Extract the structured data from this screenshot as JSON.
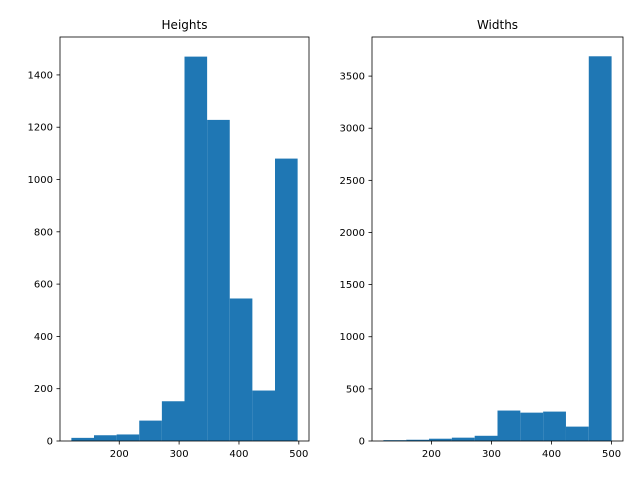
{
  "chart_data": [
    {
      "type": "bar",
      "title": "Heights",
      "xlabel": "",
      "ylabel": "",
      "bins": [
        [
          120,
          157.8
        ],
        [
          157.8,
          195.6
        ],
        [
          195.6,
          233.4
        ],
        [
          233.4,
          271.2
        ],
        [
          271.2,
          309.0
        ],
        [
          309.0,
          346.8
        ],
        [
          346.8,
          384.6
        ],
        [
          384.6,
          422.4
        ],
        [
          422.4,
          460.2
        ],
        [
          460.2,
          498.0
        ]
      ],
      "values": [
        12,
        22,
        25,
        78,
        152,
        1470,
        1228,
        545,
        193,
        1080
      ],
      "xlim": [
        101,
        517
      ],
      "ylim": [
        0,
        1545
      ],
      "xticks": [
        200,
        300,
        400,
        500
      ],
      "yticks": [
        0,
        200,
        400,
        600,
        800,
        1000,
        1200,
        1400
      ],
      "grid": false,
      "color": "#1f77b4"
    },
    {
      "type": "bar",
      "title": "Widths",
      "xlabel": "",
      "ylabel": "",
      "bins": [
        [
          120,
          158.0
        ],
        [
          158.0,
          196.0
        ],
        [
          196.0,
          234.0
        ],
        [
          234.0,
          272.0
        ],
        [
          272.0,
          310.0
        ],
        [
          310.0,
          348.0
        ],
        [
          348.0,
          386.0
        ],
        [
          386.0,
          424.0
        ],
        [
          424.0,
          462.0
        ],
        [
          462.0,
          500.0
        ]
      ],
      "values": [
        8,
        12,
        22,
        32,
        50,
        292,
        272,
        282,
        138,
        3690
      ],
      "xlim": [
        101,
        519
      ],
      "ylim": [
        0,
        3875
      ],
      "xticks": [
        200,
        300,
        400,
        500
      ],
      "yticks": [
        0,
        500,
        1000,
        1500,
        2000,
        2500,
        3000,
        3500
      ],
      "grid": false,
      "color": "#1f77b4"
    }
  ]
}
